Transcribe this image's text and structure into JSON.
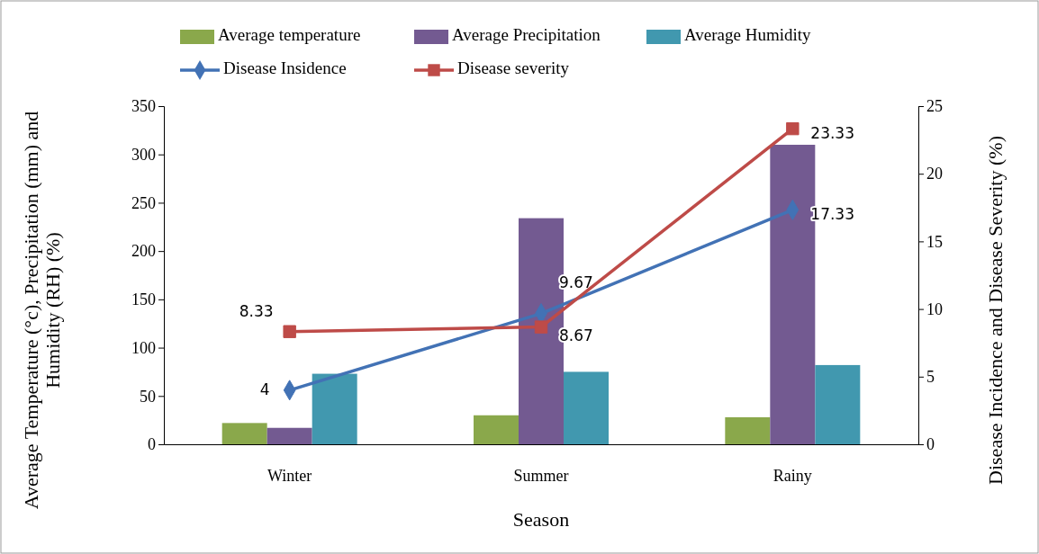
{
  "chart_data": {
    "type": "bar",
    "xlabel": "Season",
    "ylabel": "Average Temperature (°c), Precipitation (mm) and Humidity (RH) (%)",
    "y2label": "Disease Incidence and Disease Severity (%)",
    "categories": [
      "Winter",
      "Summer",
      "Rainy"
    ],
    "series": [
      {
        "name": "Average temperature",
        "color": "#8aa84b",
        "values": [
          22,
          30,
          28
        ]
      },
      {
        "name": "Average Precipitation",
        "color": "#735a91",
        "values": [
          17,
          234,
          310
        ]
      },
      {
        "name": "Average Humidity",
        "color": "#4198af",
        "values": [
          73,
          75,
          82
        ]
      },
      {
        "name": "Disease Insidence",
        "type": "line",
        "axis": "y2",
        "marker": "diamond",
        "color": "#4272b5",
        "values": [
          4,
          9.67,
          17.33
        ],
        "value_labels": [
          "4",
          "9.67",
          "17.33"
        ]
      },
      {
        "name": "Disease severity",
        "type": "line",
        "axis": "y2",
        "marker": "square",
        "color": "#be4b48",
        "values": [
          8.33,
          8.67,
          23.33
        ],
        "value_labels": [
          "8.33",
          "8.67",
          "23.33"
        ]
      }
    ],
    "ylim": [
      0,
      350
    ],
    "yticks": [
      0,
      50,
      100,
      150,
      200,
      250,
      300,
      350
    ],
    "y2lim": [
      0,
      25
    ],
    "y2ticks": [
      0,
      5,
      10,
      15,
      20,
      25
    ],
    "legend": "top",
    "grid": false
  }
}
